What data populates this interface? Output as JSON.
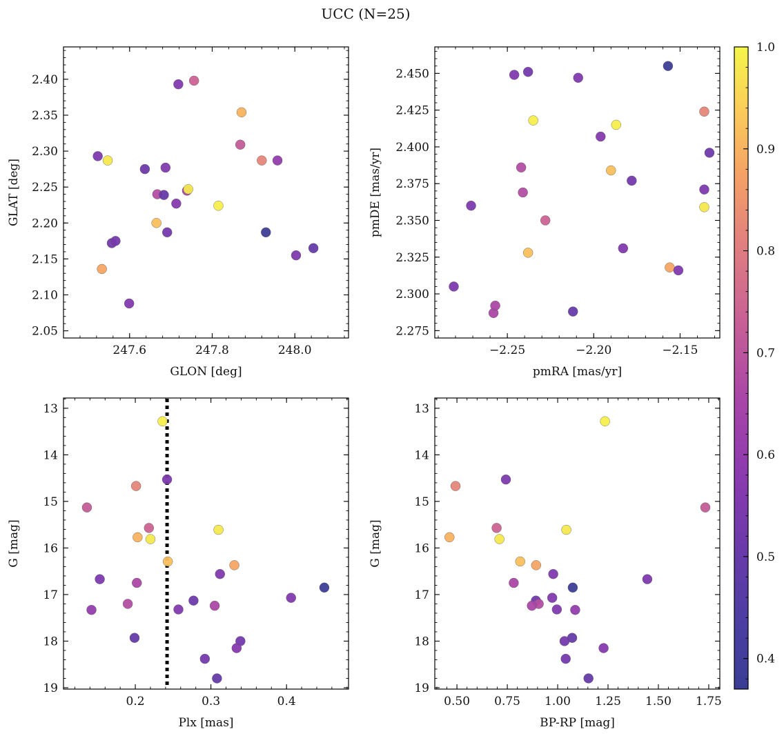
{
  "figure": {
    "title": "UCC (N=25)"
  },
  "colorbar": {
    "colormap": "plasma",
    "range": [
      0.37,
      1.0
    ],
    "ticks": [
      "0.4",
      "0.5",
      "0.6",
      "0.7",
      "0.8",
      "0.9",
      "1.0"
    ],
    "tick_values": [
      0.4,
      0.5,
      0.6,
      0.7,
      0.8,
      0.9,
      1.0
    ]
  },
  "colors": {
    "dotted_line": "#000000",
    "marker_edge": "#555555"
  },
  "chart_data": [
    {
      "type": "scatter",
      "xlabel": "GLON [deg]",
      "ylabel": "GLAT [deg]",
      "xlim": [
        247.44,
        248.13
      ],
      "ylim": [
        2.04,
        2.445
      ],
      "xticks": [
        247.6,
        247.8,
        248.0
      ],
      "xticklabels": [
        "247.6",
        "247.8",
        "248.0"
      ],
      "yticks": [
        2.05,
        2.1,
        2.15,
        2.2,
        2.25,
        2.3,
        2.35,
        2.4
      ],
      "yticklabels": [
        "2.05",
        "2.10",
        "2.15",
        "2.20",
        "2.25",
        "2.30",
        "2.35",
        "2.40"
      ],
      "points": [
        {
          "x": 247.523,
          "y": 2.293,
          "c": 0.55
        },
        {
          "x": 247.547,
          "y": 2.287,
          "c": 0.98
        },
        {
          "x": 247.533,
          "y": 2.136,
          "c": 0.88
        },
        {
          "x": 247.557,
          "y": 2.172,
          "c": 0.53
        },
        {
          "x": 247.566,
          "y": 2.175,
          "c": 0.53
        },
        {
          "x": 247.599,
          "y": 2.088,
          "c": 0.56
        },
        {
          "x": 247.637,
          "y": 2.275,
          "c": 0.52
        },
        {
          "x": 247.665,
          "y": 2.2,
          "c": 0.92
        },
        {
          "x": 247.667,
          "y": 2.24,
          "c": 0.68
        },
        {
          "x": 247.683,
          "y": 2.239,
          "c": 0.5
        },
        {
          "x": 247.687,
          "y": 2.277,
          "c": 0.56
        },
        {
          "x": 247.691,
          "y": 2.187,
          "c": 0.53
        },
        {
          "x": 247.713,
          "y": 2.227,
          "c": 0.57
        },
        {
          "x": 247.718,
          "y": 2.393,
          "c": 0.56
        },
        {
          "x": 247.739,
          "y": 2.245,
          "c": 0.66
        },
        {
          "x": 247.742,
          "y": 2.247,
          "c": 0.98
        },
        {
          "x": 247.756,
          "y": 2.398,
          "c": 0.74
        },
        {
          "x": 247.815,
          "y": 2.224,
          "c": 0.99
        },
        {
          "x": 247.868,
          "y": 2.309,
          "c": 0.72
        },
        {
          "x": 247.871,
          "y": 2.354,
          "c": 0.9
        },
        {
          "x": 247.92,
          "y": 2.287,
          "c": 0.82
        },
        {
          "x": 247.93,
          "y": 2.187,
          "c": 0.38
        },
        {
          "x": 247.958,
          "y": 2.287,
          "c": 0.6
        },
        {
          "x": 248.003,
          "y": 2.155,
          "c": 0.55
        },
        {
          "x": 248.045,
          "y": 2.165,
          "c": 0.5
        }
      ]
    },
    {
      "type": "scatter",
      "xlabel": "pmRA [mas/yr]",
      "ylabel": "pmDE [mas/yr]",
      "xlim": [
        -2.292,
        -2.127
      ],
      "ylim": [
        2.27,
        2.468
      ],
      "xticks": [
        -2.25,
        -2.2,
        -2.15
      ],
      "xticklabels": [
        "−2.25",
        "−2.20",
        "−2.15"
      ],
      "yticks": [
        2.275,
        2.3,
        2.325,
        2.35,
        2.375,
        2.4,
        2.425,
        2.45
      ],
      "yticklabels": [
        "2.275",
        "2.300",
        "2.325",
        "2.350",
        "2.375",
        "2.400",
        "2.425",
        "2.450"
      ],
      "points": [
        {
          "x": -2.281,
          "y": 2.305,
          "c": 0.55
        },
        {
          "x": -2.271,
          "y": 2.36,
          "c": 0.55
        },
        {
          "x": -2.258,
          "y": 2.287,
          "c": 0.66
        },
        {
          "x": -2.257,
          "y": 2.292,
          "c": 0.66
        },
        {
          "x": -2.246,
          "y": 2.449,
          "c": 0.56
        },
        {
          "x": -2.242,
          "y": 2.386,
          "c": 0.68
        },
        {
          "x": -2.241,
          "y": 2.369,
          "c": 0.68
        },
        {
          "x": -2.238,
          "y": 2.451,
          "c": 0.53
        },
        {
          "x": -2.238,
          "y": 2.328,
          "c": 0.92
        },
        {
          "x": -2.235,
          "y": 2.418,
          "c": 0.99
        },
        {
          "x": -2.228,
          "y": 2.35,
          "c": 0.74
        },
        {
          "x": -2.212,
          "y": 2.288,
          "c": 0.5
        },
        {
          "x": -2.209,
          "y": 2.447,
          "c": 0.56
        },
        {
          "x": -2.196,
          "y": 2.407,
          "c": 0.57
        },
        {
          "x": -2.19,
          "y": 2.384,
          "c": 0.92
        },
        {
          "x": -2.187,
          "y": 2.415,
          "c": 0.99
        },
        {
          "x": -2.183,
          "y": 2.331,
          "c": 0.56
        },
        {
          "x": -2.178,
          "y": 2.377,
          "c": 0.53
        },
        {
          "x": -2.157,
          "y": 2.455,
          "c": 0.38
        },
        {
          "x": -2.156,
          "y": 2.318,
          "c": 0.88
        },
        {
          "x": -2.151,
          "y": 2.316,
          "c": 0.56
        },
        {
          "x": -2.136,
          "y": 2.424,
          "c": 0.82
        },
        {
          "x": -2.136,
          "y": 2.371,
          "c": 0.55
        },
        {
          "x": -2.136,
          "y": 2.359,
          "c": 0.98
        },
        {
          "x": -2.133,
          "y": 2.396,
          "c": 0.52
        }
      ]
    },
    {
      "type": "scatter",
      "xlabel": "Plx [mas]",
      "ylabel": "G [mag]",
      "xlim": [
        0.105,
        0.482
      ],
      "ylim": [
        19.03,
        12.78
      ],
      "y_inverted": true,
      "xticks": [
        0.2,
        0.3,
        0.4
      ],
      "xticklabels": [
        "0.2",
        "0.3",
        "0.4"
      ],
      "yticks": [
        13,
        14,
        15,
        16,
        17,
        18,
        19
      ],
      "yticklabels": [
        "13",
        "14",
        "15",
        "16",
        "17",
        "18",
        "19"
      ],
      "vline": {
        "x": 0.242,
        "style": "dotted"
      },
      "points": [
        {
          "x": 0.236,
          "y": 13.28,
          "c": 0.99
        },
        {
          "x": 0.242,
          "y": 14.53,
          "c": 0.55
        },
        {
          "x": 0.201,
          "y": 14.67,
          "c": 0.82
        },
        {
          "x": 0.136,
          "y": 15.13,
          "c": 0.72
        },
        {
          "x": 0.218,
          "y": 15.57,
          "c": 0.74
        },
        {
          "x": 0.203,
          "y": 15.77,
          "c": 0.9
        },
        {
          "x": 0.22,
          "y": 15.81,
          "c": 0.98
        },
        {
          "x": 0.31,
          "y": 15.61,
          "c": 0.98
        },
        {
          "x": 0.243,
          "y": 16.29,
          "c": 0.92
        },
        {
          "x": 0.331,
          "y": 16.37,
          "c": 0.88
        },
        {
          "x": 0.312,
          "y": 16.56,
          "c": 0.56
        },
        {
          "x": 0.153,
          "y": 16.67,
          "c": 0.55
        },
        {
          "x": 0.202,
          "y": 16.75,
          "c": 0.66
        },
        {
          "x": 0.45,
          "y": 16.85,
          "c": 0.38
        },
        {
          "x": 0.406,
          "y": 17.07,
          "c": 0.56
        },
        {
          "x": 0.277,
          "y": 17.13,
          "c": 0.52
        },
        {
          "x": 0.19,
          "y": 17.2,
          "c": 0.68
        },
        {
          "x": 0.305,
          "y": 17.24,
          "c": 0.66
        },
        {
          "x": 0.142,
          "y": 17.33,
          "c": 0.6
        },
        {
          "x": 0.257,
          "y": 17.32,
          "c": 0.56
        },
        {
          "x": 0.199,
          "y": 17.93,
          "c": 0.5
        },
        {
          "x": 0.339,
          "y": 18.0,
          "c": 0.53
        },
        {
          "x": 0.334,
          "y": 18.15,
          "c": 0.57
        },
        {
          "x": 0.292,
          "y": 18.38,
          "c": 0.53
        },
        {
          "x": 0.308,
          "y": 18.8,
          "c": 0.5
        }
      ]
    },
    {
      "type": "scatter",
      "xlabel": "BP-RP [mag]",
      "ylabel": "G [mag]",
      "xlim": [
        0.39,
        1.805
      ],
      "ylim": [
        19.03,
        12.78
      ],
      "y_inverted": true,
      "xticks": [
        0.5,
        0.75,
        1.0,
        1.25,
        1.5,
        1.75
      ],
      "xticklabels": [
        "0.50",
        "0.75",
        "1.00",
        "1.25",
        "1.50",
        "1.75"
      ],
      "yticks": [
        13,
        14,
        15,
        16,
        17,
        18,
        19
      ],
      "yticklabels": [
        "13",
        "14",
        "15",
        "16",
        "17",
        "18",
        "19"
      ],
      "points": [
        {
          "x": 1.235,
          "y": 13.28,
          "c": 0.99
        },
        {
          "x": 0.743,
          "y": 14.53,
          "c": 0.55
        },
        {
          "x": 0.493,
          "y": 14.67,
          "c": 0.82
        },
        {
          "x": 1.733,
          "y": 15.13,
          "c": 0.72
        },
        {
          "x": 0.697,
          "y": 15.57,
          "c": 0.74
        },
        {
          "x": 0.463,
          "y": 15.77,
          "c": 0.9
        },
        {
          "x": 0.711,
          "y": 15.81,
          "c": 0.98
        },
        {
          "x": 1.043,
          "y": 15.61,
          "c": 0.98
        },
        {
          "x": 0.814,
          "y": 16.29,
          "c": 0.92
        },
        {
          "x": 0.893,
          "y": 16.37,
          "c": 0.88
        },
        {
          "x": 0.978,
          "y": 16.56,
          "c": 0.56
        },
        {
          "x": 1.445,
          "y": 16.67,
          "c": 0.55
        },
        {
          "x": 0.782,
          "y": 16.75,
          "c": 0.66
        },
        {
          "x": 1.075,
          "y": 16.85,
          "c": 0.38
        },
        {
          "x": 0.973,
          "y": 17.07,
          "c": 0.56
        },
        {
          "x": 0.892,
          "y": 17.13,
          "c": 0.52
        },
        {
          "x": 0.906,
          "y": 17.2,
          "c": 0.68
        },
        {
          "x": 0.872,
          "y": 17.24,
          "c": 0.66
        },
        {
          "x": 0.996,
          "y": 17.32,
          "c": 0.56
        },
        {
          "x": 1.087,
          "y": 17.33,
          "c": 0.6
        },
        {
          "x": 1.072,
          "y": 17.93,
          "c": 0.5
        },
        {
          "x": 1.034,
          "y": 18.0,
          "c": 0.53
        },
        {
          "x": 1.228,
          "y": 18.15,
          "c": 0.57
        },
        {
          "x": 1.04,
          "y": 18.38,
          "c": 0.53
        },
        {
          "x": 1.153,
          "y": 18.8,
          "c": 0.5
        }
      ]
    }
  ]
}
